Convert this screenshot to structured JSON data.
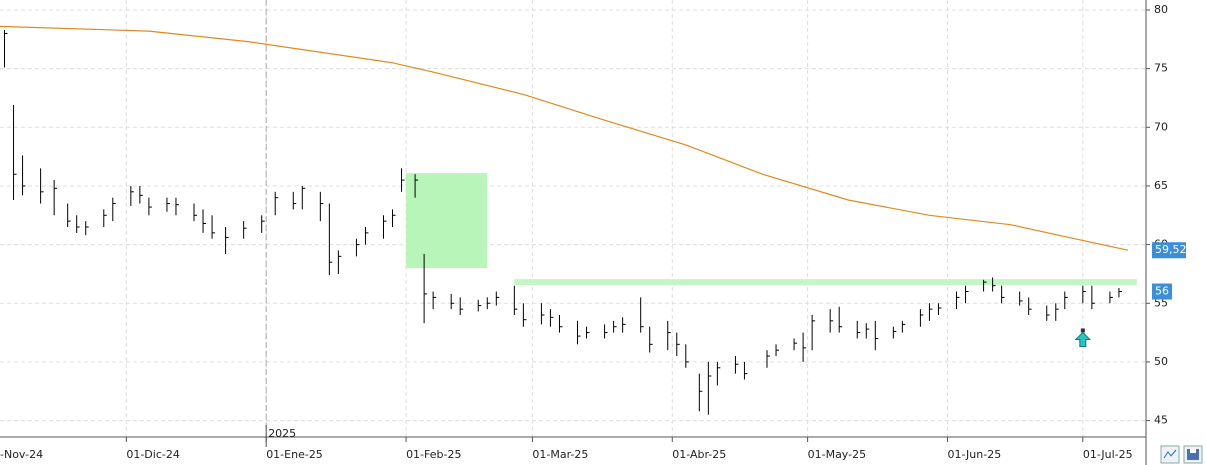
{
  "chart_data": {
    "type": "ohlc",
    "xlim": [
      "2024-11-03",
      "2025-07-15"
    ],
    "ylim": [
      43.6,
      80.85
    ],
    "yticks": [
      45,
      50,
      55,
      60,
      65,
      70,
      75,
      80
    ],
    "xticks": [
      {
        "value": "2024-11-01",
        "label": "-Nov-24"
      },
      {
        "value": "2024-12-01",
        "label": "01-Dic-24"
      },
      {
        "value": "2025-01-01",
        "label": "01-Ene-25"
      },
      {
        "value": "2025-02-01",
        "label": "01-Feb-25"
      },
      {
        "value": "2025-03-01",
        "label": "01-Mar-25"
      },
      {
        "value": "2025-04-01",
        "label": "01-Abr-25"
      },
      {
        "value": "2025-05-01",
        "label": "01-May-25"
      },
      {
        "value": "2025-06-01",
        "label": "01-Jun-25"
      },
      {
        "value": "2025-07-01",
        "label": "01-Jul-25"
      }
    ],
    "year_marker": {
      "value": "2025-01-01",
      "label": "2025"
    },
    "grid": true,
    "color": "#000000",
    "dates": [
      "2024-11-04",
      "2024-11-06",
      "2024-11-08",
      "2024-11-12",
      "2024-11-15",
      "2024-11-18",
      "2024-11-20",
      "2024-11-22",
      "2024-11-26",
      "2024-11-28",
      "2024-12-02",
      "2024-12-04",
      "2024-12-06",
      "2024-12-10",
      "2024-12-12",
      "2024-12-16",
      "2024-12-18",
      "2024-12-20",
      "2024-12-23",
      "2024-12-27",
      "2024-12-31",
      "2025-01-03",
      "2025-01-07",
      "2025-01-09",
      "2025-01-13",
      "2025-01-15",
      "2025-01-17",
      "2025-01-21",
      "2025-01-23",
      "2025-01-27",
      "2025-01-29",
      "2025-01-31",
      "2025-02-03",
      "2025-02-05",
      "2025-02-07",
      "2025-02-11",
      "2025-02-13",
      "2025-02-17",
      "2025-02-19",
      "2025-02-21",
      "2025-02-25",
      "2025-02-27",
      "2025-03-03",
      "2025-03-05",
      "2025-03-07",
      "2025-03-11",
      "2025-03-13",
      "2025-03-17",
      "2025-03-19",
      "2025-03-21",
      "2025-03-25",
      "2025-03-27",
      "2025-03-31",
      "2025-04-02",
      "2025-04-04",
      "2025-04-07",
      "2025-04-09",
      "2025-04-11",
      "2025-04-15",
      "2025-04-17",
      "2025-04-22",
      "2025-04-24",
      "2025-04-28",
      "2025-04-30",
      "2025-05-02",
      "2025-05-06",
      "2025-05-08",
      "2025-05-12",
      "2025-05-14",
      "2025-05-16",
      "2025-05-20",
      "2025-05-22",
      "2025-05-26",
      "2025-05-28",
      "2025-05-30",
      "2025-06-03",
      "2025-06-05",
      "2025-06-09",
      "2025-06-11",
      "2025-06-13",
      "2025-06-17",
      "2025-06-19",
      "2025-06-23",
      "2025-06-25",
      "2025-06-27",
      "2025-07-01",
      "2025-07-03",
      "2025-07-07",
      "2025-07-09"
    ],
    "high": [
      78.3,
      71.9,
      67.6,
      66.5,
      65.5,
      63.5,
      62.5,
      62,
      63,
      64,
      65,
      65,
      64,
      64,
      64,
      63.5,
      63,
      62.5,
      61.5,
      62,
      62.5,
      64.5,
      64.5,
      65,
      64.5,
      63.5,
      59.5,
      60.5,
      61.5,
      62.5,
      63,
      66.5,
      66,
      59.2,
      56,
      55.8,
      55.5,
      55.3,
      55.5,
      56,
      56.5,
      55,
      55,
      54.5,
      54,
      53.5,
      53,
      53.2,
      53.5,
      53.8,
      55.5,
      53,
      53.5,
      52.5,
      51.5,
      49,
      50,
      50,
      50.5,
      50,
      51,
      51.5,
      52,
      52.5,
      54,
      54.5,
      54.7,
      53.5,
      53.3,
      53.5,
      53,
      53.5,
      54.5,
      55,
      55,
      56,
      56.5,
      57,
      57.2,
      56.5,
      56,
      55.5,
      54.8,
      55,
      56,
      56.5,
      56.5,
      56,
      56.3
    ],
    "low": [
      75.1,
      63.8,
      64.2,
      63.5,
      62.5,
      61.5,
      61,
      60.8,
      61.5,
      62,
      63.3,
      63.5,
      62.5,
      62.8,
      62.5,
      62,
      61,
      60.5,
      59.2,
      60.5,
      61,
      62.5,
      63,
      63,
      62,
      57.4,
      57.5,
      59,
      60,
      60.5,
      61.5,
      64.5,
      64,
      53.3,
      54.5,
      54.5,
      54,
      54.3,
      54.5,
      54.8,
      54,
      53,
      53.2,
      53,
      52.5,
      51.5,
      52,
      52,
      52.5,
      52.5,
      52.5,
      50.8,
      51,
      50.5,
      49.5,
      45.8,
      45.5,
      48,
      49,
      48.5,
      49.5,
      50.5,
      51,
      50,
      51,
      52.5,
      52.5,
      52,
      52,
      51,
      52,
      52.5,
      53,
      53.5,
      54,
      54.5,
      55,
      56,
      56,
      55,
      54.8,
      54,
      53.5,
      53.5,
      54.5,
      55,
      54.5,
      55,
      55.5
    ],
    "close": [
      78,
      66,
      65,
      64.5,
      64.8,
      62,
      61.5,
      61.5,
      62.5,
      63.5,
      64.5,
      64.2,
      63.2,
      63.5,
      63.4,
      62.5,
      61.8,
      61,
      60.6,
      61.4,
      62,
      64,
      63.5,
      64.8,
      63.5,
      58.5,
      59,
      60,
      61,
      62,
      62.5,
      65.5,
      65.5,
      55.8,
      55.5,
      55,
      54.5,
      54.8,
      55,
      55.5,
      54.5,
      53.6,
      54,
      53.8,
      53,
      52.2,
      52.5,
      52.5,
      53,
      53.2,
      53,
      51.5,
      52.5,
      51.5,
      50,
      47.5,
      48.8,
      49.5,
      49.8,
      49,
      50.5,
      51,
      51.6,
      51.2,
      53.5,
      53.5,
      53,
      52.5,
      52.8,
      52,
      52.6,
      53.2,
      54,
      54.5,
      54.6,
      55.5,
      56,
      56.8,
      56.5,
      55.5,
      55.2,
      54.5,
      54,
      54.5,
      55.5,
      56,
      55,
      55.5,
      56
    ],
    "price_marker": {
      "value": 56,
      "color": "#3b8fd9"
    },
    "moving_average": {
      "color": "#e08a1e",
      "dates": [
        "2024-11-03",
        "2024-12-06",
        "2024-12-28",
        "2025-01-29",
        "2025-02-07",
        "2025-02-27",
        "2025-03-17",
        "2025-04-04",
        "2025-04-21",
        "2025-05-10",
        "2025-05-28",
        "2025-06-15",
        "2025-06-28",
        "2025-07-11"
      ],
      "values": [
        78.6,
        78.2,
        77.3,
        75.5,
        74.7,
        72.8,
        70.6,
        68.5,
        66,
        63.8,
        62.5,
        61.7,
        60.6,
        59.52
      ],
      "value_labels": [
        null,
        null,
        null,
        null,
        null,
        null,
        null,
        null,
        null,
        null,
        null,
        null,
        null,
        "59,52"
      ],
      "label_color": "#3b8fd9"
    },
    "zones": [
      {
        "x": [
          "2025-02-01",
          "2025-02-19"
        ],
        "y": [
          58.0,
          66.1
        ],
        "color": "#b8f5b8"
      }
    ],
    "levels": [
      {
        "value": 56.8,
        "x": [
          "2025-02-25",
          "2025-07-13"
        ],
        "color": "#c4f5c4"
      }
    ],
    "signals": [
      {
        "date": "2025-07-01",
        "value": 52,
        "color": "#29c4c4"
      }
    ]
  }
}
